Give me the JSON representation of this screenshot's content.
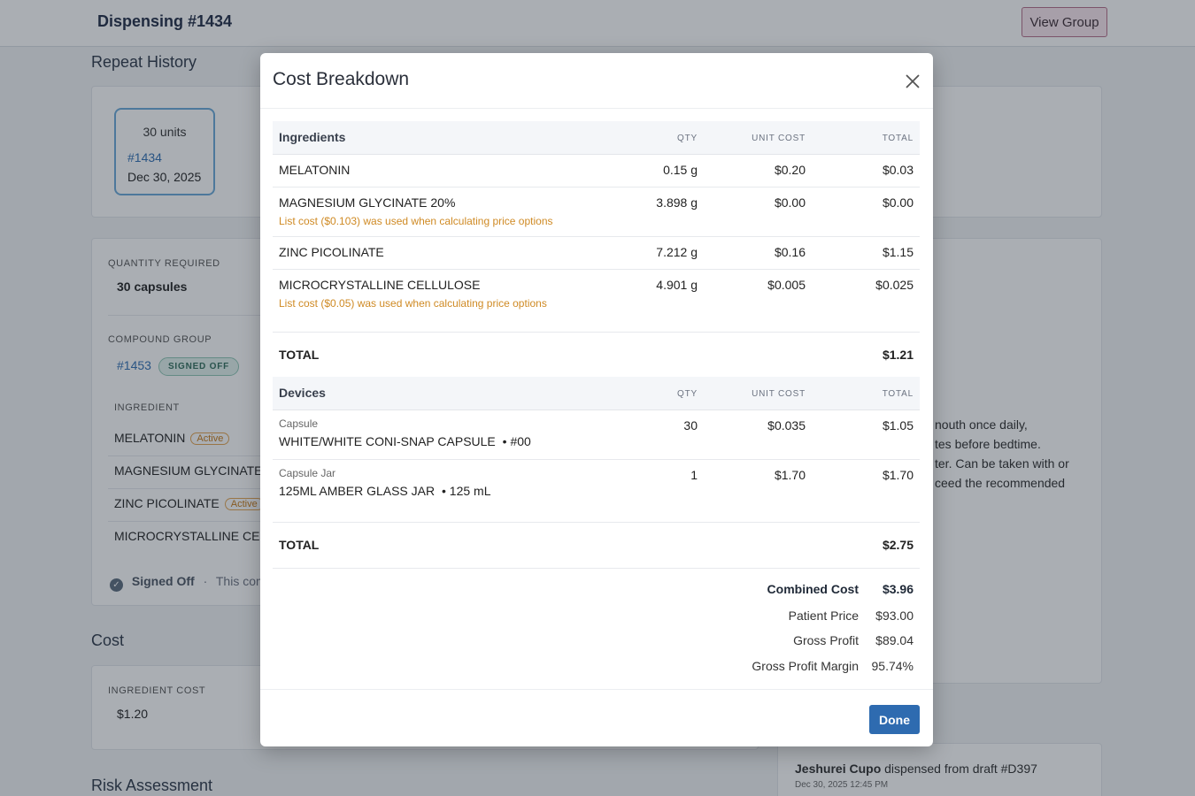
{
  "header": {
    "title": "Dispensing #1434",
    "view_group": "View Group"
  },
  "repeat_history": {
    "heading": "Repeat History",
    "tile": {
      "units": "30 units",
      "number": "#1434",
      "date": "Dec 30, 2025"
    }
  },
  "details": {
    "quantity_label": "QUANTITY REQUIRED",
    "quantity_value": "30 capsules",
    "compound_label": "COMPOUND GROUP",
    "compound_number": "#1453",
    "compound_status": "SIGNED OFF",
    "ingredient_label": "INGREDIENT",
    "ingredients": [
      {
        "name": "MELATONIN",
        "badge": "Active"
      },
      {
        "name": "MAGNESIUM GLYCINATE",
        "badge": ""
      },
      {
        "name": "ZINC PICOLINATE",
        "badge": "Active"
      },
      {
        "name": "MICROCRYSTALLINE CEL",
        "badge": ""
      }
    ],
    "signed_off": "Signed Off",
    "signed_off_note": "This comp"
  },
  "cost_section": {
    "heading": "Cost",
    "ingredient_cost_label": "INGREDIENT COST",
    "ingredient_cost_value": "$1.20"
  },
  "risk_heading": "Risk Assessment",
  "directions_fragments": [
    "nouth once daily,",
    "tes before bedtime.",
    "ter. Can be taken with or",
    "ceed the recommended"
  ],
  "activity": {
    "user": "Jeshurei Cupo",
    "action": "dispensed from draft #D397",
    "timestamp": "Dec 30, 2025 12:45 PM"
  },
  "modal": {
    "title": "Cost Breakdown",
    "ingredients_table": {
      "heading": "Ingredients",
      "columns": {
        "qty": "QTY",
        "unit_cost": "UNIT COST",
        "total": "TOTAL"
      },
      "rows": [
        {
          "name": "MELATONIN",
          "qty": "0.15 g",
          "unit_cost": "$0.20",
          "total": "$0.03",
          "note": ""
        },
        {
          "name": "MAGNESIUM GLYCINATE 20%",
          "qty": "3.898 g",
          "unit_cost": "$0.00",
          "total": "$0.00",
          "note": "List cost ($0.103) was used when calculating price options"
        },
        {
          "name": "ZINC PICOLINATE",
          "qty": "7.212 g",
          "unit_cost": "$0.16",
          "total": "$1.15",
          "note": ""
        },
        {
          "name": "MICROCRYSTALLINE CELLULOSE",
          "qty": "4.901 g",
          "unit_cost": "$0.005",
          "total": "$0.025",
          "note": "List cost ($0.05) was used when calculating price options"
        }
      ],
      "total_label": "TOTAL",
      "total_value": "$1.21"
    },
    "devices_table": {
      "heading": "Devices",
      "columns": {
        "qty": "QTY",
        "unit_cost": "UNIT COST",
        "total": "TOTAL"
      },
      "rows": [
        {
          "type": "Capsule",
          "name": "WHITE/WHITE CONI-SNAP CAPSULE",
          "detail": "#00",
          "qty": "30",
          "unit_cost": "$0.035",
          "total": "$1.05"
        },
        {
          "type": "Capsule Jar",
          "name": "125ML AMBER GLASS JAR",
          "detail": "125 mL",
          "qty": "1",
          "unit_cost": "$1.70",
          "total": "$1.70"
        }
      ],
      "total_label": "TOTAL",
      "total_value": "$2.75"
    },
    "summary": {
      "combined_cost_label": "Combined Cost",
      "combined_cost": "$3.96",
      "patient_price_label": "Patient Price",
      "patient_price": "$93.00",
      "gross_profit_label": "Gross Profit",
      "gross_profit": "$89.04",
      "gross_margin_label": "Gross Profit Margin",
      "gross_margin": "95.74%"
    },
    "done_label": "Done"
  }
}
